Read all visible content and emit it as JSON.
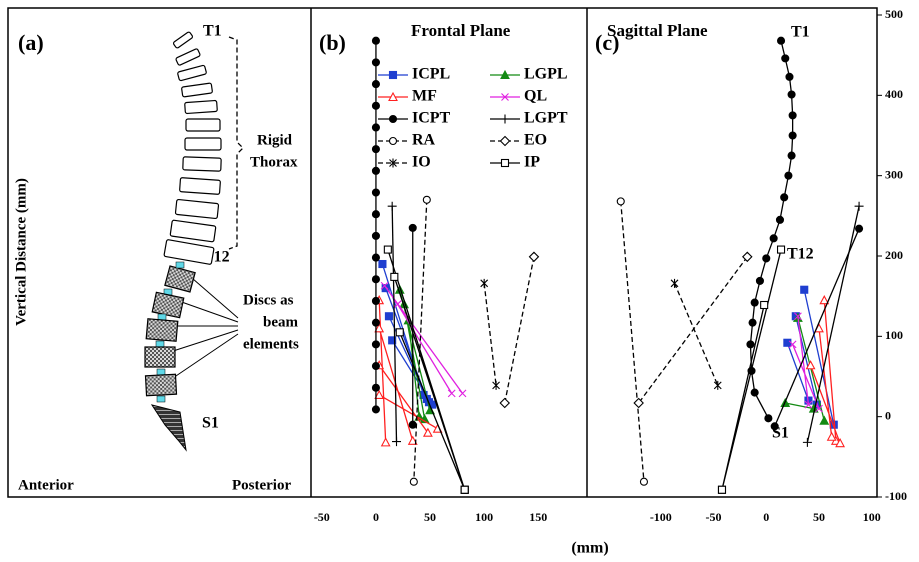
{
  "y_axis_label": "Vertical Distance (mm)",
  "x_axis_label": "(mm)",
  "panel_a": {
    "label": "(a)",
    "t1": "T1",
    "t12": "T12",
    "s1": "S1",
    "rigid_thorax": [
      "Rigid",
      "Thorax"
    ],
    "discs": [
      "Discs as",
      "beam",
      "elements"
    ],
    "anterior": "Anterior",
    "posterior": "Posterior"
  },
  "chart_data": [
    {
      "type": "line",
      "label": "(b)",
      "title": "Frontal Plane",
      "xlim": [
        -60,
        195
      ],
      "xticks": [
        -50,
        0,
        50,
        100,
        150
      ],
      "ylim": [
        -100,
        500
      ],
      "legend": "upper left",
      "series": [
        {
          "name": "ICPL",
          "color": "#1f3fd0",
          "marker": "square",
          "x": [
            6,
            44,
            null,
            9,
            47,
            null,
            12,
            49,
            null,
            15,
            52
          ],
          "values": [
            190,
            27,
            null,
            160,
            22,
            null,
            125,
            18,
            null,
            95,
            15
          ]
        },
        {
          "name": "LGPL",
          "color": "#138a13",
          "marker": "triangle",
          "x": [
            22,
            50,
            null,
            26,
            45,
            null,
            30,
            40
          ],
          "values": [
            158,
            8,
            null,
            140,
            -3,
            null,
            120,
            0
          ]
        },
        {
          "name": "MF",
          "color": "#ff2020",
          "marker": "triangle-open",
          "x": [
            3,
            9,
            null,
            3,
            34,
            null,
            3,
            48,
            null,
            3,
            57
          ],
          "values": [
            145,
            -32,
            null,
            110,
            -30,
            null,
            64,
            -20,
            null,
            27,
            -15
          ]
        },
        {
          "name": "QL",
          "color": "#e020e0",
          "marker": "x",
          "x": [
            8,
            80,
            null,
            20,
            70
          ],
          "values": [
            163,
            29,
            null,
            140,
            29
          ]
        },
        {
          "name": "ICPT",
          "color": "#000000",
          "marker": "circle",
          "x": [
            34,
            34
          ],
          "values": [
            235,
            -10
          ]
        },
        {
          "name": "LGPT",
          "color": "#000000",
          "marker": "plus",
          "x": [
            15,
            19
          ],
          "values": [
            262,
            -31
          ]
        },
        {
          "name": "RA",
          "color": "#000000",
          "marker": "circle-open",
          "dash": true,
          "x": [
            47,
            35
          ],
          "values": [
            270,
            -81
          ]
        },
        {
          "name": "EO",
          "color": "#000000",
          "marker": "diamond-open",
          "dash": true,
          "x": [
            146,
            119
          ],
          "values": [
            199,
            17
          ]
        },
        {
          "name": "IO",
          "color": "#000000",
          "marker": "asterisk",
          "dash": true,
          "x": [
            100,
            111
          ],
          "values": [
            166,
            39
          ]
        },
        {
          "name": "IP",
          "color": "#000000",
          "marker": "square-open",
          "x": [
            11,
            82,
            null,
            17,
            82,
            null,
            22,
            82
          ],
          "values": [
            208,
            -91,
            null,
            174,
            -91,
            null,
            105,
            -91
          ]
        },
        {
          "color": "#000000",
          "marker": "circle",
          "x": [
            0,
            0,
            0,
            0,
            0,
            0,
            0,
            0,
            0,
            0,
            0,
            0,
            0,
            0,
            0,
            0,
            0,
            0
          ],
          "values": [
            468,
            441,
            414,
            387,
            360,
            333,
            306,
            279,
            252,
            225,
            198,
            171,
            144,
            117,
            90,
            63,
            36,
            9
          ]
        }
      ]
    },
    {
      "type": "line",
      "label": "(c)",
      "title": "Sagittal Plane",
      "annotations": [
        "T1",
        "T12",
        "S1"
      ],
      "xlim": [
        -170,
        105
      ],
      "xticks": [
        -100,
        -50,
        0,
        50,
        100
      ],
      "ylim": [
        -100,
        500
      ],
      "yticks": [
        -100,
        0,
        100,
        200,
        300,
        400,
        500
      ],
      "series": [
        {
          "name": "ICPL",
          "color": "#1f3fd0",
          "marker": "square",
          "x": [
            36,
            64,
            null,
            28,
            48,
            null,
            20,
            40
          ],
          "values": [
            158,
            -10,
            null,
            125,
            15,
            null,
            92,
            20
          ]
        },
        {
          "name": "LGPL",
          "color": "#138a13",
          "marker": "triangle",
          "x": [
            30,
            55,
            null,
            18,
            45
          ],
          "values": [
            123,
            -5,
            null,
            17,
            10
          ]
        },
        {
          "name": "MF",
          "color": "#ff2020",
          "marker": "triangle-open",
          "x": [
            55,
            66,
            null,
            50,
            62,
            null,
            42,
            70
          ],
          "values": [
            145,
            -30,
            null,
            110,
            -25,
            null,
            64,
            -33
          ]
        },
        {
          "name": "QL",
          "color": "#e020e0",
          "marker": "x",
          "x": [
            30,
            40,
            null,
            25,
            50
          ],
          "values": [
            125,
            15,
            null,
            90,
            10
          ]
        },
        {
          "name": "ICPT",
          "color": "#000000",
          "marker": "circle",
          "x": [
            88,
            8
          ],
          "values": [
            234,
            -12
          ]
        },
        {
          "name": "LGPT",
          "color": "#000000",
          "marker": "plus",
          "x": [
            88,
            39
          ],
          "values": [
            262,
            -32
          ]
        },
        {
          "name": "RA",
          "color": "#000000",
          "marker": "circle-open",
          "dash": true,
          "x": [
            -138,
            -116
          ],
          "values": [
            268,
            -81
          ]
        },
        {
          "name": "EO",
          "color": "#000000",
          "marker": "diamond-open",
          "dash": true,
          "x": [
            -18,
            -121
          ],
          "values": [
            199,
            17
          ]
        },
        {
          "name": "IO",
          "color": "#000000",
          "marker": "asterisk",
          "dash": true,
          "x": [
            -87,
            -46
          ],
          "values": [
            166,
            39
          ]
        },
        {
          "name": "IP",
          "color": "#000000",
          "marker": "square-open",
          "x": [
            14,
            -42,
            null,
            -2,
            -42
          ],
          "values": [
            208,
            -91,
            null,
            139,
            -91
          ]
        },
        {
          "color": "#000000",
          "marker": "circle",
          "x": [
            14,
            18,
            22,
            24,
            25,
            25,
            24,
            21,
            17,
            13,
            7,
            0,
            -6,
            -11,
            -13,
            -15,
            -14,
            -11,
            2
          ],
          "values": [
            468,
            446,
            423,
            401,
            375,
            350,
            325,
            300,
            273,
            245,
            222,
            197,
            169,
            142,
            117,
            90,
            57,
            30,
            -2
          ]
        }
      ]
    }
  ]
}
